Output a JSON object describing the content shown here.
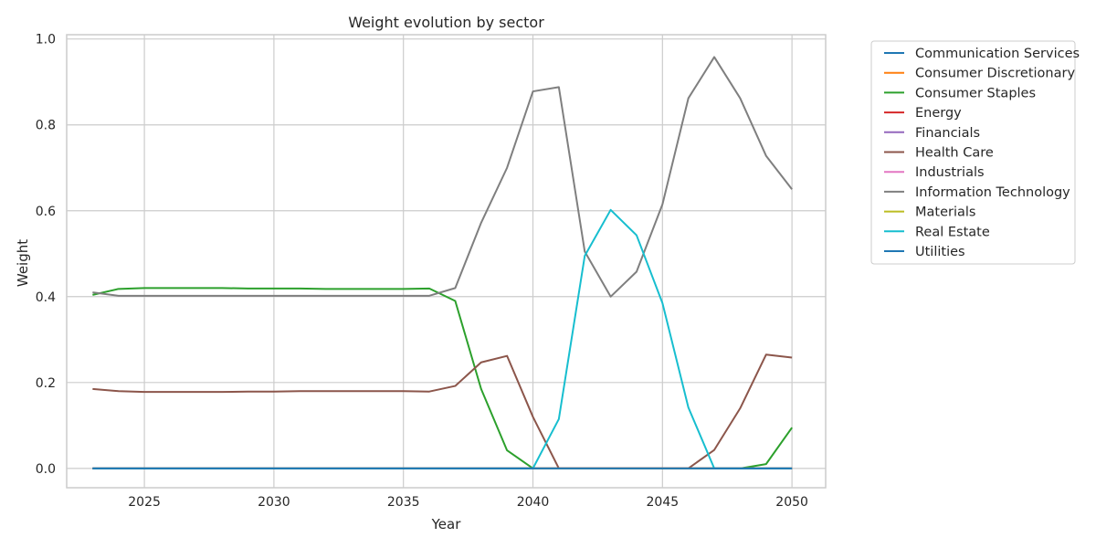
{
  "chart_data": {
    "type": "line",
    "title": "Weight evolution by sector",
    "xlabel": "Year",
    "ylabel": "Weight",
    "xlim": [
      2022,
      2051.3
    ],
    "ylim": [
      -0.045,
      1.01
    ],
    "xticks": [
      2025,
      2030,
      2035,
      2040,
      2045,
      2050
    ],
    "yticks": [
      0.0,
      0.2,
      0.4,
      0.6,
      0.8,
      1.0
    ],
    "ytick_labels": [
      "0.0",
      "0.2",
      "0.4",
      "0.6",
      "0.8",
      "1.0"
    ],
    "grid": true,
    "legend_placement": "outside upper right",
    "x": [
      2023,
      2024,
      2025,
      2026,
      2027,
      2028,
      2029,
      2030,
      2031,
      2032,
      2033,
      2034,
      2035,
      2036,
      2037,
      2038,
      2039,
      2040,
      2041,
      2042,
      2043,
      2044,
      2045,
      2046,
      2047,
      2048,
      2049,
      2050
    ],
    "series": [
      {
        "name": "Communication Services",
        "color": "#1f77b4",
        "values": [
          0,
          0,
          0,
          0,
          0,
          0,
          0,
          0,
          0,
          0,
          0,
          0,
          0,
          0,
          0,
          0,
          0,
          0,
          0,
          0,
          0,
          0,
          0,
          0,
          0,
          0,
          0,
          0
        ]
      },
      {
        "name": "Consumer Discretionary",
        "color": "#ff7f0e",
        "values": [
          0,
          0,
          0,
          0,
          0,
          0,
          0,
          0,
          0,
          0,
          0,
          0,
          0,
          0,
          0,
          0,
          0,
          0,
          0,
          0,
          0,
          0,
          0,
          0,
          0,
          0,
          0,
          0
        ]
      },
      {
        "name": "Consumer Staples",
        "color": "#2ca02c",
        "values": [
          0.404,
          0.418,
          0.42,
          0.42,
          0.42,
          0.42,
          0.419,
          0.419,
          0.419,
          0.418,
          0.418,
          0.418,
          0.418,
          0.419,
          0.39,
          0.185,
          0.042,
          0.0,
          0.0,
          0.0,
          0.0,
          0.0,
          0.0,
          0.0,
          0.0,
          0.0,
          0.01,
          0.095
        ]
      },
      {
        "name": "Energy",
        "color": "#d62728",
        "values": [
          0,
          0,
          0,
          0,
          0,
          0,
          0,
          0,
          0,
          0,
          0,
          0,
          0,
          0,
          0,
          0,
          0,
          0,
          0,
          0,
          0,
          0,
          0,
          0,
          0,
          0,
          0,
          0
        ]
      },
      {
        "name": "Financials",
        "color": "#9467bd",
        "values": [
          0,
          0,
          0,
          0,
          0,
          0,
          0,
          0,
          0,
          0,
          0,
          0,
          0,
          0,
          0,
          0,
          0,
          0,
          0,
          0,
          0,
          0,
          0,
          0,
          0,
          0,
          0,
          0
        ]
      },
      {
        "name": "Health Care",
        "color": "#8c564b",
        "values": [
          0.185,
          0.18,
          0.178,
          0.178,
          0.178,
          0.178,
          0.179,
          0.179,
          0.18,
          0.18,
          0.18,
          0.18,
          0.18,
          0.179,
          0.192,
          0.247,
          0.262,
          0.12,
          0.0,
          0.0,
          0.0,
          0.0,
          0.0,
          0.0,
          0.043,
          0.14,
          0.265,
          0.258
        ]
      },
      {
        "name": "Industrials",
        "color": "#e377c2",
        "values": [
          0,
          0,
          0,
          0,
          0,
          0,
          0,
          0,
          0,
          0,
          0,
          0,
          0,
          0,
          0,
          0,
          0,
          0,
          0,
          0,
          0,
          0,
          0,
          0,
          0,
          0,
          0,
          0
        ]
      },
      {
        "name": "Information Technology",
        "color": "#7f7f7f",
        "values": [
          0.41,
          0.402,
          0.402,
          0.402,
          0.402,
          0.402,
          0.402,
          0.402,
          0.402,
          0.402,
          0.402,
          0.402,
          0.402,
          0.402,
          0.42,
          0.572,
          0.7,
          0.878,
          0.888,
          0.505,
          0.4,
          0.458,
          0.615,
          0.862,
          0.958,
          0.862,
          0.728,
          0.65
        ]
      },
      {
        "name": "Materials",
        "color": "#bcbd22",
        "values": [
          0,
          0,
          0,
          0,
          0,
          0,
          0,
          0,
          0,
          0,
          0,
          0,
          0,
          0,
          0,
          0,
          0,
          0,
          0,
          0,
          0,
          0,
          0,
          0,
          0,
          0,
          0,
          0
        ]
      },
      {
        "name": "Real Estate",
        "color": "#17becf",
        "values": [
          0,
          0,
          0,
          0,
          0,
          0,
          0,
          0,
          0,
          0,
          0,
          0,
          0,
          0,
          0,
          0,
          0,
          0,
          0.115,
          0.495,
          0.602,
          0.543,
          0.385,
          0.142,
          0.0,
          0.0,
          0.0,
          0.0
        ]
      },
      {
        "name": "Utilities",
        "color": "#1f77b4",
        "values": [
          0,
          0,
          0,
          0,
          0,
          0,
          0,
          0,
          0,
          0,
          0,
          0,
          0,
          0,
          0,
          0,
          0,
          0,
          0,
          0,
          0,
          0,
          0,
          0,
          0,
          0,
          0,
          0
        ]
      }
    ]
  }
}
